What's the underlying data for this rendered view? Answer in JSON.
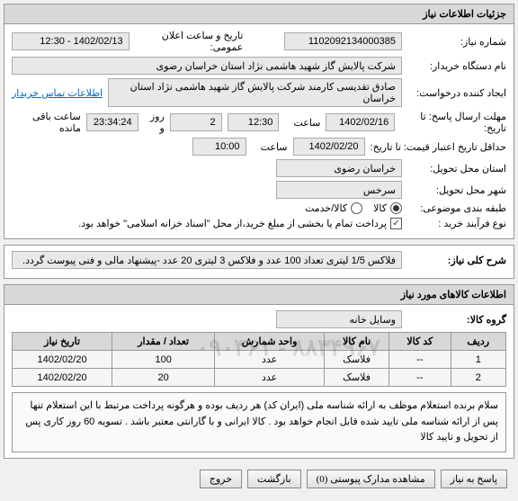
{
  "header": {
    "panel_title": "جزئیات اطلاعات نیاز"
  },
  "fields": {
    "need_number_label": "شماره نیاز:",
    "need_number": "1102092134000385",
    "public_datetime_label": "تاریخ و ساعت اعلان عمومی:",
    "public_datetime": "1402/02/13 - 12:30",
    "buyer_label": "نام دستگاه خریدار:",
    "buyer": "شرکت پالایش گاز شهید هاشمی نژاد   استان خراسان رضوی",
    "creator_label": "ایجاد کننده درخواست:",
    "creator": "صادق تقدیسی کارمند شرکت پالایش گاز شهید هاشمی نژاد   استان خراسان",
    "contact_link": "اطلاعات تماس خریدار",
    "deadline_label": "مهلت ارسال پاسخ: تا تاریخ:",
    "deadline_date": "1402/02/16",
    "saat_label": "ساعت",
    "deadline_time": "12:30",
    "days_remain": "2",
    "days_remain_label": "روز و",
    "time_remain": "23:34:24",
    "time_remain_label": "ساعت باقی مانده",
    "validity_label": "حداقل تاریخ اعتبار قیمت: تا تاریخ:",
    "validity_date": "1402/02/20",
    "validity_time": "10:00",
    "province_label": "استان محل تحویل:",
    "province": "خراسان رضوی",
    "city_label": "شهر محل تحویل:",
    "city": "سرخس",
    "category_label": "طبقه بندی موضوعی:",
    "cat_goods": "کالا",
    "cat_service": "کالا/خدمت",
    "purchase_type_label": "نوع فرآیند خرید :",
    "purchase_note": "پرداخت تمام یا بخشی از مبلغ خرید،از محل \"اسناد خزانه اسلامی\" خواهد بود."
  },
  "summary": {
    "label": "شرح کلی نیاز:",
    "text": "فلاکس 1/5  لیتری تعداد 100 عدد و فلاکس 3 لیتری 20 عدد -پیشنهاد مالی و فنی پیوست گردد."
  },
  "goods": {
    "panel_title": "اطلاعات کالاهای مورد نیاز",
    "group_label": "گروه کالا:",
    "group_value": "وسایل خانه",
    "watermark": "۰۹۰۳۶۱ - ۸۸۳۴۹۶۷",
    "columns": {
      "row": "ردیف",
      "code": "کد کالا",
      "name": "نام کالا",
      "unit": "واحد شمارش",
      "qty": "تعداد / مقدار",
      "date": "تاریخ نیاز"
    },
    "rows": [
      {
        "row": "1",
        "code": "--",
        "name": "فلاسک",
        "unit": "عدد",
        "qty": "100",
        "date": "1402/02/20"
      },
      {
        "row": "2",
        "code": "--",
        "name": "فلاسک",
        "unit": "عدد",
        "qty": "20",
        "date": "1402/02/20"
      }
    ],
    "note": "سلام  برنده استعلام موظف به ارائه شناسه ملی (ایران کد) هر ردیف بوده و هرگونه پرداخت مرتبط با این استعلام تنها پس از ارائه شناسه ملی تایید شده قابل انجام خواهد بود . کالا ایرانی و با گارانتی معتبر باشد . تسویه 60 روز کاری پس از تحویل و تایید کالا"
  },
  "footer": {
    "reply": "پاسخ به نیاز",
    "attachments": "مشاهده مدارک پیوستی (0)",
    "back": "بازگشت",
    "exit": "خروج"
  }
}
